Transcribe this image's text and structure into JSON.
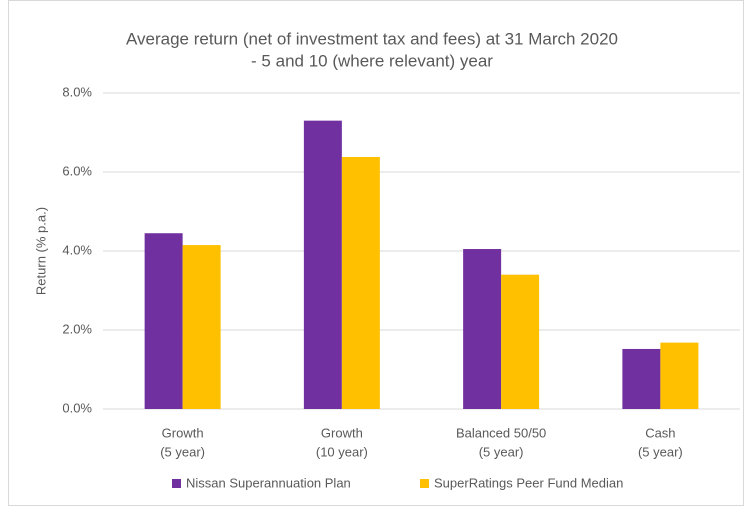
{
  "chart_data": {
    "type": "bar",
    "title": [
      "Average return (net of investment tax and fees) at 31 March 2020",
      "- 5 and 10 (where relevant) year"
    ],
    "y_label": "Return (% p.a.)",
    "categories": [
      [
        "Growth",
        "(5 year)"
      ],
      [
        "Growth",
        "(10 year)"
      ],
      [
        "Balanced 50/50",
        "(5 year)"
      ],
      [
        "Cash",
        "(5 year)"
      ]
    ],
    "series": [
      {
        "name": "Nissan Superannuation Plan",
        "color": "#7030a0",
        "values": [
          4.45,
          7.3,
          4.05,
          1.52
        ]
      },
      {
        "name": "SuperRatings Peer Fund Median",
        "color": "#ffc000",
        "values": [
          4.15,
          6.38,
          3.4,
          1.68
        ]
      }
    ],
    "ylim": [
      0,
      8
    ],
    "yticks": [
      {
        "value": 0,
        "label": "0.0%"
      },
      {
        "value": 2,
        "label": "2.0%"
      },
      {
        "value": 4,
        "label": "4.0%"
      },
      {
        "value": 6,
        "label": "6.0%"
      },
      {
        "value": 8,
        "label": "8.0%"
      }
    ],
    "grid": true,
    "legend": "bottom"
  }
}
